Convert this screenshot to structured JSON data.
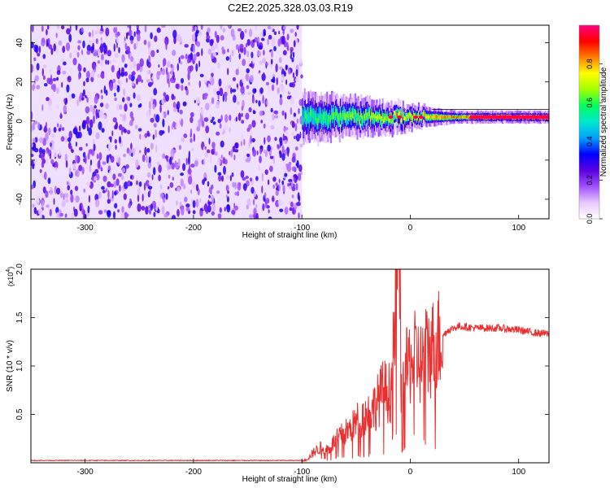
{
  "title": "C2E2.2025.328.03.03.R19",
  "chart_data": [
    {
      "type": "heatmap",
      "xlabel": "Height of straight line (km)",
      "ylabel": "Frequency (Hz)",
      "xlim": [
        -350,
        128
      ],
      "ylim": [
        -50,
        49
      ],
      "x_ticks": [
        -300,
        -200,
        -100,
        0,
        100
      ],
      "y_ticks": [
        -40,
        -20,
        0,
        20,
        40
      ],
      "colorbar": {
        "label": "Normalized spectral amplitude",
        "range": [
          0.0,
          1.0
        ],
        "ticks": [
          "0.0",
          "0.2",
          "0.4",
          "0.6",
          "0.8"
        ],
        "tick_values": [
          0.0,
          0.2,
          0.4,
          0.6,
          0.8
        ],
        "colors": [
          "#ffffff",
          "#e8c8ff",
          "#a050ff",
          "#5a00e0",
          "#0000ff",
          "#00a0ff",
          "#00e8d0",
          "#00ff60",
          "#a0ff00",
          "#ffff00",
          "#ff8000",
          "#ff0000",
          "#ff0080"
        ]
      },
      "regions": [
        {
          "name": "noise",
          "x_range": [
            -350,
            -100
          ],
          "freq_range": [
            -50,
            49
          ],
          "amplitude": 0.15
        },
        {
          "name": "signal",
          "x_range": [
            -100,
            128
          ],
          "center_freq": 2,
          "freq_halfwidth_start": 8,
          "freq_halfwidth_end": 2,
          "amplitude_peak": 0.95
        }
      ]
    },
    {
      "type": "line",
      "xlabel": "Height of straight line (km)",
      "ylabel": "SNR (10 * v/v)",
      "scale_label": "(x10",
      "scale_exp": "4",
      "scale_suffix": ")",
      "xlim": [
        -350,
        128
      ],
      "ylim": [
        0,
        2.0
      ],
      "x_ticks": [
        -300,
        -200,
        -100,
        0,
        100
      ],
      "y_ticks": [
        "0.5",
        "1.0",
        "1.5",
        "2.0"
      ],
      "y_tick_values": [
        0.5,
        1.0,
        1.5,
        2.0
      ],
      "series": [
        {
          "name": "SNR",
          "color": "#e83030",
          "x": [
            -350,
            -100,
            -95,
            -88,
            -82,
            -75,
            -70,
            -62,
            -55,
            -48,
            -40,
            -32,
            -25,
            -18,
            -14,
            -10,
            -8,
            -5,
            0,
            5,
            10,
            15,
            20,
            28,
            35,
            45,
            60,
            80,
            100,
            115,
            128
          ],
          "values": [
            0.02,
            0.02,
            0.04,
            0.12,
            0.16,
            0.14,
            0.22,
            0.3,
            0.35,
            0.45,
            0.5,
            0.6,
            0.75,
            0.72,
            1.6,
            2.0,
            0.6,
            0.92,
            1.05,
            1.1,
            1.02,
            1.15,
            1.18,
            1.3,
            1.38,
            1.42,
            1.4,
            1.4,
            1.38,
            1.35,
            1.34
          ]
        }
      ]
    }
  ]
}
